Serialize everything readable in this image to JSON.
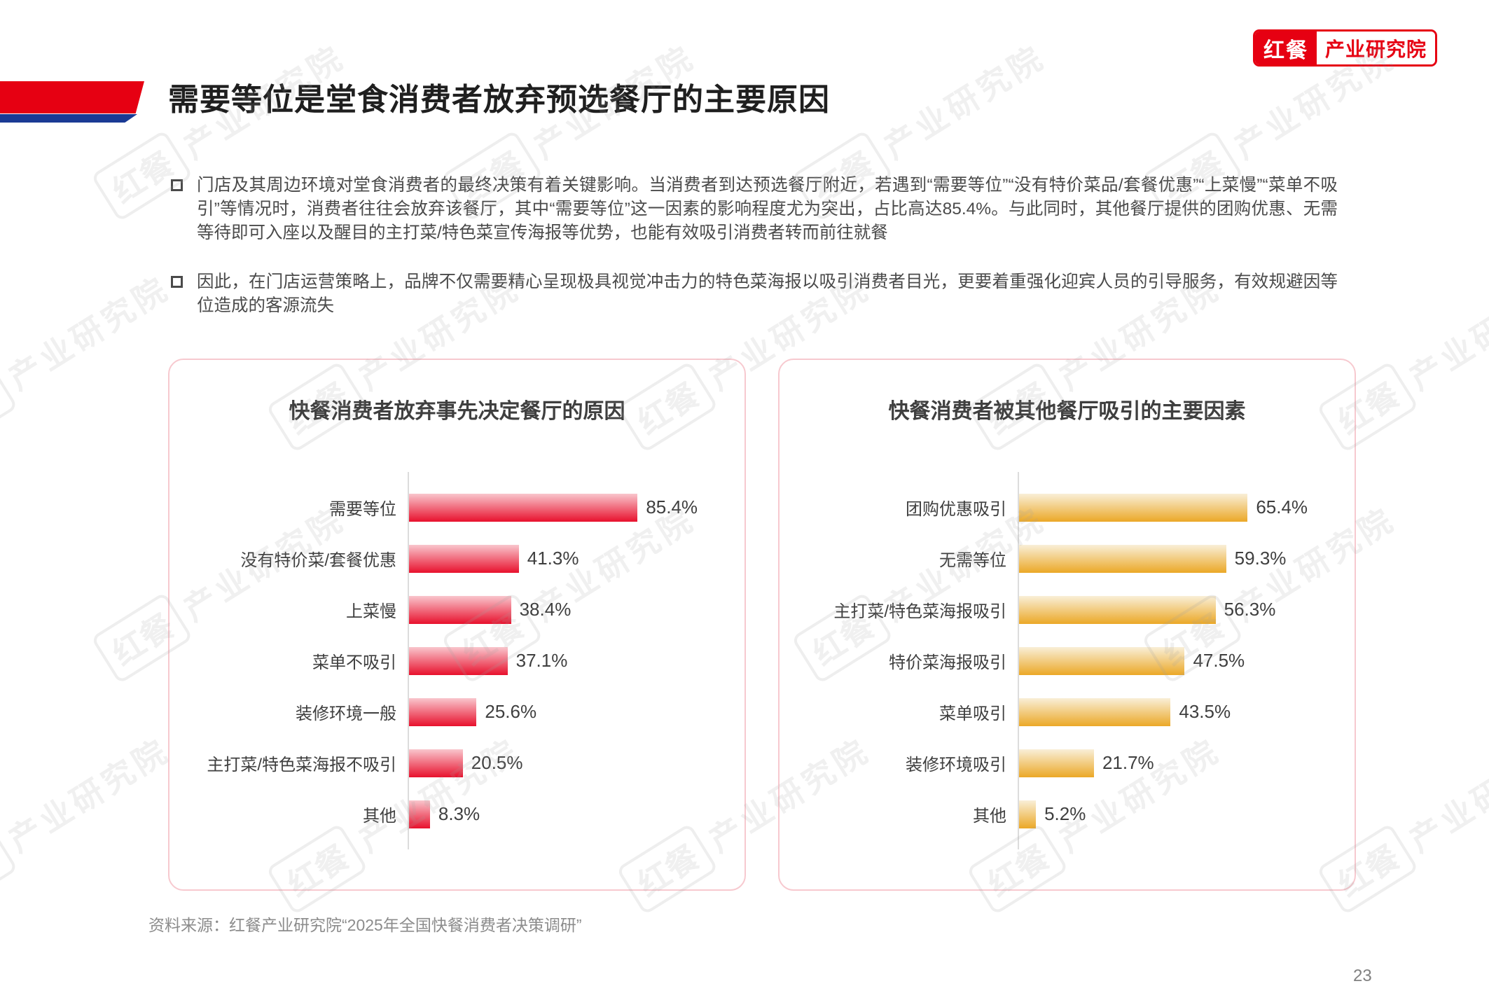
{
  "logo": {
    "brand": "红餐",
    "org": "产业研究院"
  },
  "title": "需要等位是堂食消费者放弃预选餐厅的主要原因",
  "bullets": [
    {
      "text": "门店及其周边环境对堂食消费者的最终决策有着关键影响。当消费者到达预选餐厅附近，若遇到“需要等位”“没有特价菜品/套餐优惠”“上菜慢”“菜单不吸引”等情况时，消费者往往会放弃该餐厅，其中“需要等位”这一因素的影响程度尤为突出，占比高达85.4%。与此同时，其他餐厅提供的团购优惠、无需等待即可入座以及醒目的主打菜/特色菜宣传海报等优势，也能有效吸引消费者转而前往就餐"
    },
    {
      "text": "因此，在门店运营策略上，品牌不仅需要精心呈现极具视觉冲击力的特色菜海报以吸引消费者目光，更要着重强化迎宾人员的引导服务，有效规避因等位造成的客源流失"
    }
  ],
  "source": "资料来源：红餐产业研究院“2025年全国快餐消费者决策调研”",
  "page_number": "23",
  "watermark": {
    "brand": "红餐",
    "org": "产业研究院"
  },
  "colors": {
    "brand_red": "#E60012",
    "brand_blue": "#1A3A94",
    "card_border": "#F7C9CF",
    "red_bar_top": "#F9C6CD",
    "red_bar_bottom": "#E8112D",
    "gold_bar_top": "#F9EFD8",
    "gold_bar_bottom": "#EBA827",
    "axis_gray": "#DCDCDC"
  },
  "chart_data": [
    {
      "type": "bar",
      "orientation": "horizontal",
      "title": "快餐消费者放弃事先决定餐厅的原因",
      "categories": [
        "需要等位",
        "没有特价菜/套餐优惠",
        "上菜慢",
        "菜单不吸引",
        "装修环境一般",
        "主打菜/特色菜海报不吸引",
        "其他"
      ],
      "values": [
        85.4,
        41.3,
        38.4,
        37.1,
        25.6,
        20.5,
        8.3
      ],
      "value_suffix": "%",
      "xlim": [
        0,
        100
      ],
      "grid": false,
      "legend": null,
      "bar_gradient": [
        "#F9C6CD",
        "#E8112D"
      ]
    },
    {
      "type": "bar",
      "orientation": "horizontal",
      "title": "快餐消费者被其他餐厅吸引的主要因素",
      "categories": [
        "团购优惠吸引",
        "无需等位",
        "主打菜/特色菜海报吸引",
        "特价菜海报吸引",
        "菜单吸引",
        "装修环境吸引",
        "其他"
      ],
      "values": [
        65.4,
        59.3,
        56.3,
        47.5,
        43.5,
        21.7,
        5.2
      ],
      "value_suffix": "%",
      "xlim": [
        0,
        100
      ],
      "grid": false,
      "legend": null,
      "bar_gradient": [
        "#F9EFD8",
        "#EBA827"
      ]
    }
  ]
}
